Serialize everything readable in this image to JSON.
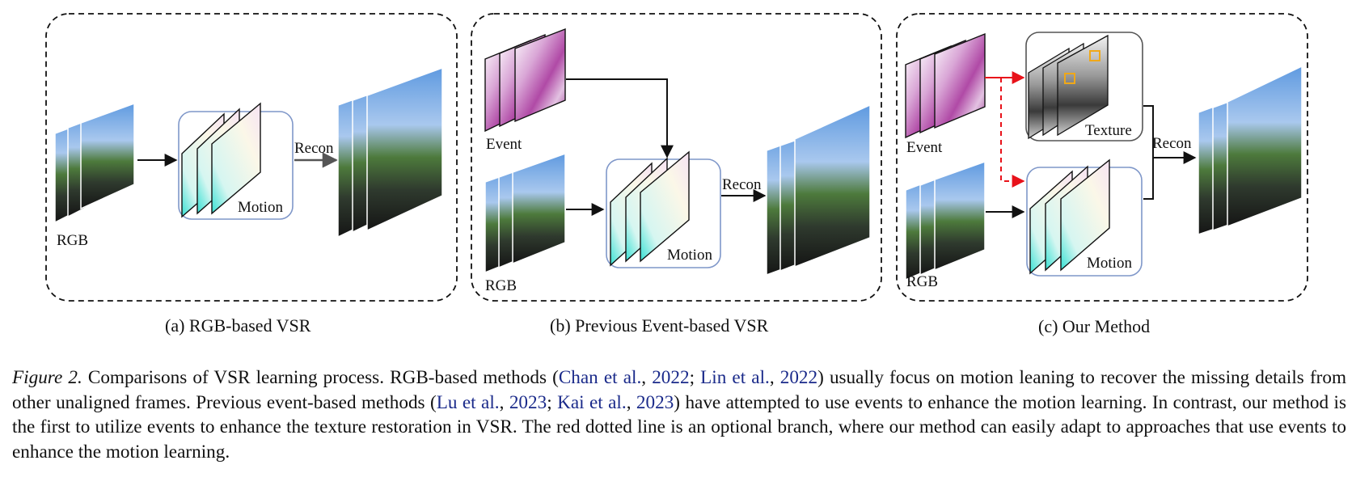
{
  "figure": {
    "panels": [
      {
        "id": "a",
        "caption": "(a) RGB-based VSR",
        "labels": {
          "rgb": "RGB",
          "motion": "Motion",
          "recon": "Recon"
        }
      },
      {
        "id": "b",
        "caption": "(b) Previous Event-based VSR",
        "labels": {
          "event": "Event",
          "rgb": "RGB",
          "motion": "Motion",
          "recon": "Recon"
        }
      },
      {
        "id": "c",
        "caption": "(c) Our Method",
        "labels": {
          "event": "Event",
          "rgb": "RGB",
          "texture": "Texture",
          "motion": "Motion",
          "recon": "Recon"
        }
      }
    ],
    "caption": {
      "label": "Figure 2.",
      "t1": " Comparisons of VSR learning process. RGB-based methods (",
      "c1a": "Chan et al.",
      "c1b": "2022",
      "c2a": "Lin et al.",
      "c2b": "2022",
      "t2": ") usually focus on motion leaning to recover the missing details from other unaligned frames. Previous event-based methods (",
      "c3a": "Lu et al.",
      "c3b": "2023",
      "c4a": "Kai et al.",
      "c4b": "2023",
      "t3": ") have attempted to use events to enhance the motion learning. In contrast, our method is the first to utilize events to enhance the texture restoration in VSR. The red dotted line is an optional branch, where our method can easily adapt to approaches that use events to enhance the motion learning."
    }
  },
  "colors": {
    "border": "#111111",
    "box": "#7f97c9",
    "red": "#e8121a",
    "event": "#b04aa6",
    "sky": "#6ea6e6",
    "highlight": "#f0a818"
  }
}
